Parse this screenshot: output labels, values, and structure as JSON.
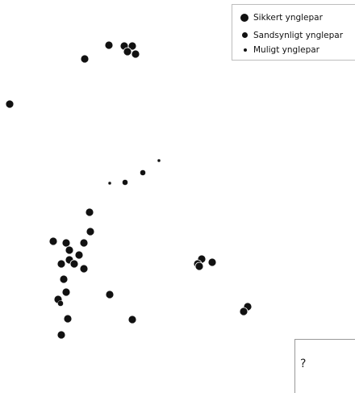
{
  "legend": {
    "items": [
      {
        "label": "Sikkert ynglepar",
        "symbol": "large-dot-icon"
      },
      {
        "label": "Sandsynligt ynglepar",
        "symbol": "medium-dot-icon"
      },
      {
        "label": "Muligt ynglepar",
        "symbol": "small-dot-icon"
      }
    ]
  },
  "inset": {
    "question_mark": "?"
  },
  "colors": {
    "marker": "#111111",
    "background": "#ffffff"
  }
}
